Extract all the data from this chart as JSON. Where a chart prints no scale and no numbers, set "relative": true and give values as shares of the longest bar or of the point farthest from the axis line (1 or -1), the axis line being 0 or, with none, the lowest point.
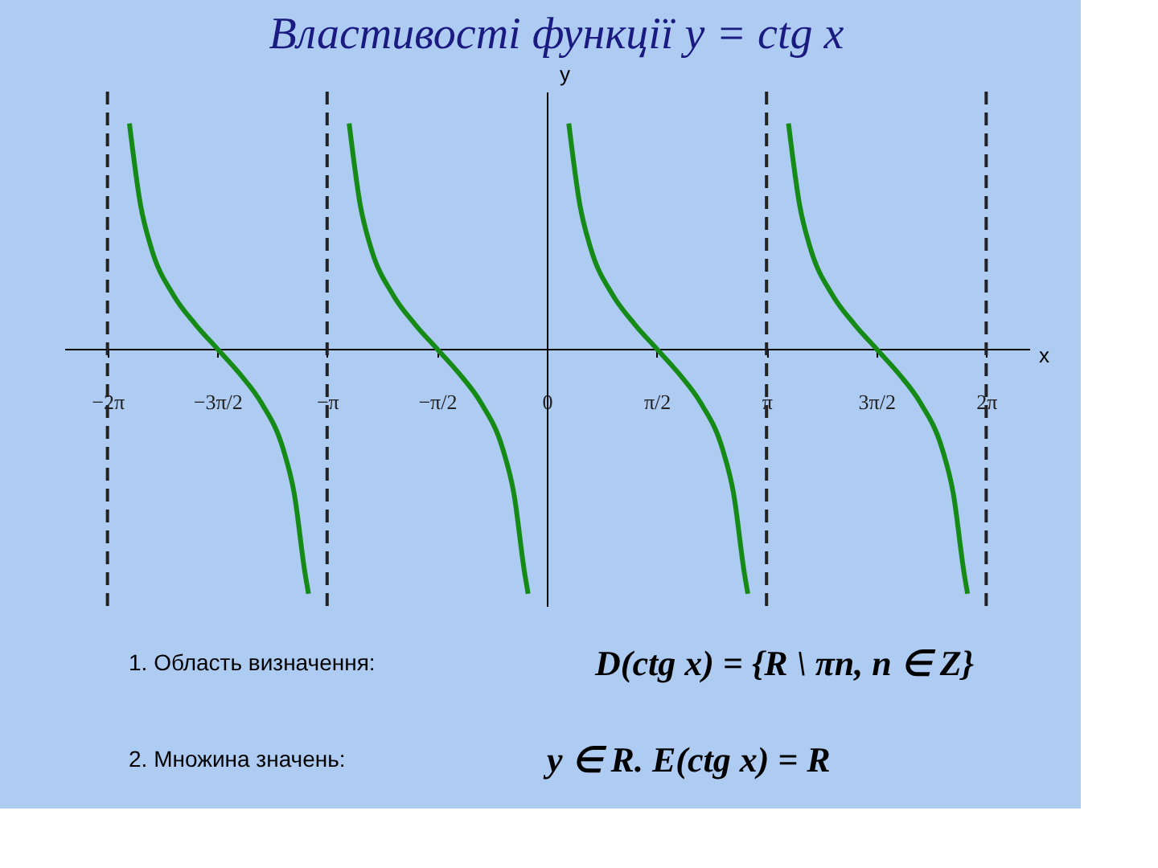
{
  "chart_data": {
    "type": "line",
    "title": "Властивості функції y = ctg x",
    "xlabel": "x",
    "ylabel": "y",
    "relative": true,
    "xlim": [
      -6.9,
      6.9
    ],
    "xticks": [
      {
        "value": -6.283,
        "label": "−2π"
      },
      {
        "value": -4.712,
        "label": "−3π/2"
      },
      {
        "value": -3.142,
        "label": "−π"
      },
      {
        "value": -1.571,
        "label": "−π/2"
      },
      {
        "value": 0,
        "label": "0"
      },
      {
        "value": 1.571,
        "label": "π/2"
      },
      {
        "value": 3.142,
        "label": "π"
      },
      {
        "value": 4.712,
        "label": "3π/2"
      },
      {
        "value": 6.283,
        "label": "2π"
      }
    ],
    "series": [
      {
        "color": "#168a16",
        "x": [
          -5.969,
          -5.812,
          -5.655,
          -5.341,
          -5.026,
          -4.712,
          -4.398,
          -4.084,
          -3.77,
          -3.613,
          -3.456,
          -3.408
        ],
        "values": [
          0.92,
          0.59,
          0.41,
          0.22,
          0.1,
          0,
          -0.1,
          -0.22,
          -0.41,
          -0.59,
          -0.92,
          -1
        ]
      },
      {
        "color": "#168a16",
        "x": [
          -2.827,
          -2.67,
          -2.513,
          -2.199,
          -1.885,
          -1.571,
          -1.257,
          -0.943,
          -0.629,
          -0.472,
          -0.315,
          -0.267
        ],
        "values": [
          0.92,
          0.59,
          0.41,
          0.22,
          0.1,
          0,
          -0.1,
          -0.22,
          -0.41,
          -0.59,
          -0.92,
          -1
        ]
      },
      {
        "color": "#168a16",
        "x": [
          0.314,
          0.471,
          0.628,
          0.942,
          1.257,
          1.571,
          1.885,
          2.199,
          2.513,
          2.67,
          2.827,
          2.875
        ],
        "values": [
          0.92,
          0.59,
          0.41,
          0.22,
          0.1,
          0,
          -0.1,
          -0.22,
          -0.41,
          -0.59,
          -0.92,
          -1
        ]
      },
      {
        "color": "#168a16",
        "x": [
          3.456,
          3.613,
          3.77,
          4.084,
          4.399,
          4.713,
          5.027,
          5.341,
          5.655,
          5.812,
          5.969,
          6.017
        ],
        "values": [
          0.92,
          0.59,
          0.41,
          0.22,
          0.1,
          0,
          -0.1,
          -0.22,
          -0.41,
          -0.59,
          -0.92,
          -1
        ]
      }
    ],
    "ref_lines": [
      {
        "axis": "x",
        "value": -6.283,
        "line_style": "dashed",
        "color": "#222222"
      },
      {
        "axis": "x",
        "value": -3.142,
        "line_style": "dashed",
        "color": "#222222"
      },
      {
        "axis": "x",
        "value": 3.142,
        "line_style": "dashed",
        "color": "#222222"
      },
      {
        "axis": "x",
        "value": 6.283,
        "line_style": "dashed",
        "color": "#222222"
      }
    ],
    "grid": false,
    "legend": false,
    "marker": "none",
    "line_style": "solid",
    "annotations": [
      "1. Область визначення:",
      "D(ctg x) = {R \\ πn, n ∈ Z}",
      "2. Множина значень:",
      "y ∈ R.   E(ctg x) = R"
    ]
  }
}
